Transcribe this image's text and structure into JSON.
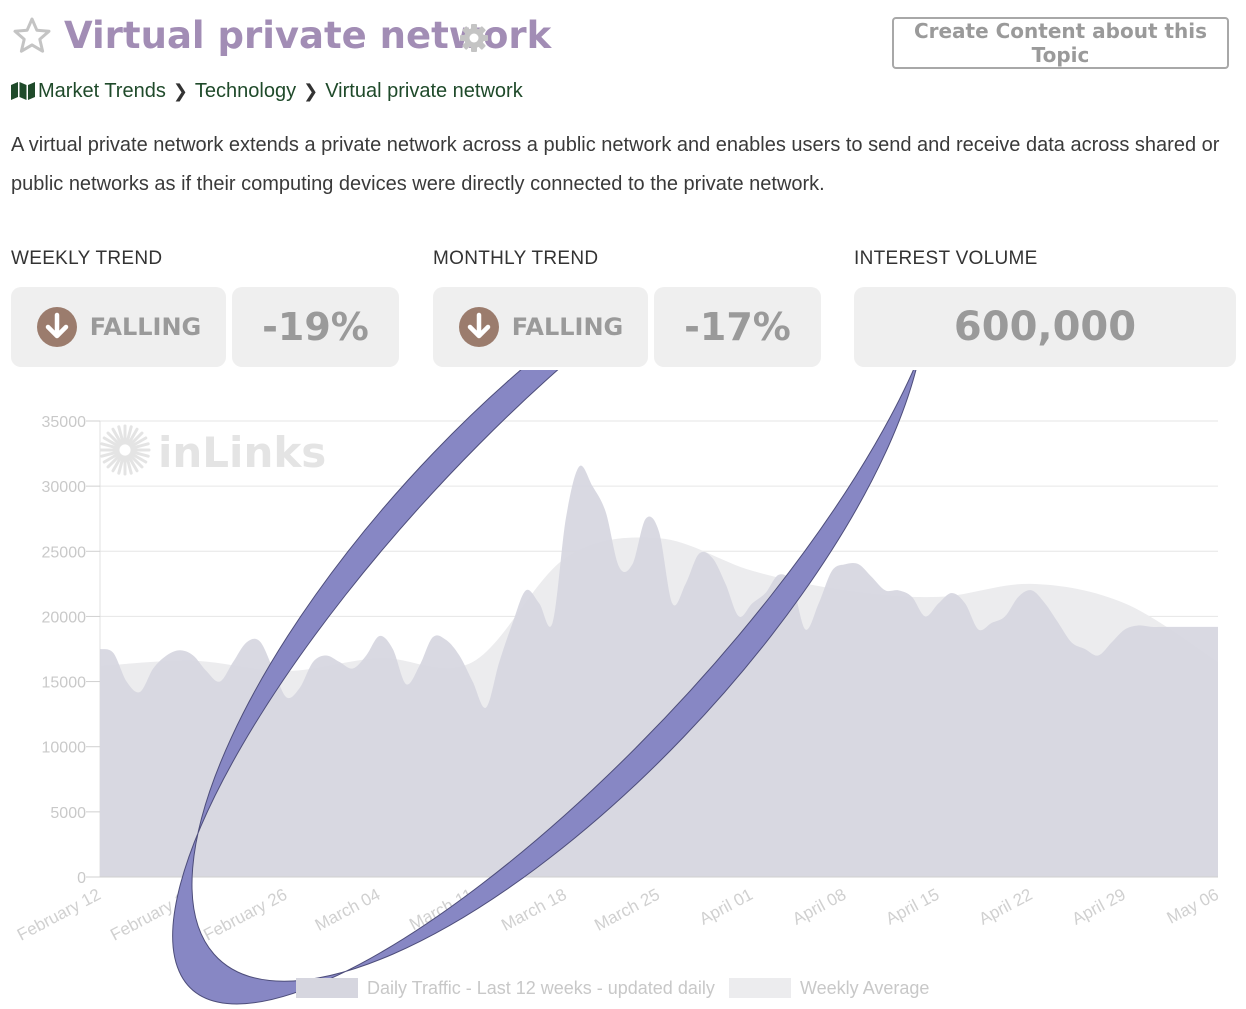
{
  "header": {
    "title": "Virtual private network",
    "create_button": "Create Content about this Topic"
  },
  "breadcrumb": [
    "Market Trends",
    "Technology",
    "Virtual private network"
  ],
  "description": "A virtual private network extends a private network across a public network and enables users to send and receive data across shared or public networks as if their computing devices were directly connected to the private network.",
  "stats": {
    "weekly": {
      "label": "WEEKLY TREND",
      "status": "FALLING",
      "change": "-19%"
    },
    "monthly": {
      "label": "MONTHLY TREND",
      "status": "FALLING",
      "change": "-17%"
    },
    "volume": {
      "label": "INTEREST VOLUME",
      "value": "600,000"
    }
  },
  "colors": {
    "title": "#a28db5",
    "daily_fill": "#d6d6df",
    "weekly_fill": "#ececee",
    "annotation_ring": "#8787c4",
    "falling_icon": "#9b7c6d"
  },
  "chart_data": {
    "type": "area",
    "watermark": "inLinks",
    "ylim": [
      0,
      35000
    ],
    "yticks": [
      0,
      5000,
      10000,
      15000,
      20000,
      25000,
      30000,
      35000
    ],
    "xlim": [
      "2024-02-12",
      "2024-05-06"
    ],
    "xticks": [
      "February 12",
      "February 19",
      "February 26",
      "March 04",
      "March 11",
      "March 18",
      "March 25",
      "April 01",
      "April 08",
      "April 15",
      "April 22",
      "April 29",
      "May 06"
    ],
    "grid": true,
    "legend_position": "bottom",
    "series": [
      {
        "name": "Daily Traffic - Last 12 weeks - updated daily",
        "x": [
          "2024-02-12",
          "2024-02-13",
          "2024-02-14",
          "2024-02-15",
          "2024-02-16",
          "2024-02-17",
          "2024-02-18",
          "2024-02-19",
          "2024-02-20",
          "2024-02-21",
          "2024-02-22",
          "2024-02-23",
          "2024-02-24",
          "2024-02-25",
          "2024-02-26",
          "2024-02-27",
          "2024-02-28",
          "2024-02-29",
          "2024-03-01",
          "2024-03-02",
          "2024-03-03",
          "2024-03-04",
          "2024-03-05",
          "2024-03-06",
          "2024-03-07",
          "2024-03-08",
          "2024-03-09",
          "2024-03-10",
          "2024-03-11",
          "2024-03-12",
          "2024-03-13",
          "2024-03-14",
          "2024-03-15",
          "2024-03-16",
          "2024-03-17",
          "2024-03-18",
          "2024-03-19",
          "2024-03-20",
          "2024-03-21",
          "2024-03-22",
          "2024-03-23",
          "2024-03-24",
          "2024-03-25",
          "2024-03-26",
          "2024-03-27",
          "2024-03-28",
          "2024-03-29",
          "2024-03-30",
          "2024-03-31",
          "2024-04-01",
          "2024-04-02",
          "2024-04-03",
          "2024-04-04",
          "2024-04-05",
          "2024-04-06",
          "2024-04-07",
          "2024-04-08",
          "2024-04-09",
          "2024-04-10",
          "2024-04-11",
          "2024-04-12",
          "2024-04-13",
          "2024-04-14",
          "2024-04-15",
          "2024-04-16",
          "2024-04-17",
          "2024-04-18",
          "2024-04-19",
          "2024-04-20",
          "2024-04-21",
          "2024-04-22",
          "2024-04-23",
          "2024-04-24",
          "2024-04-25",
          "2024-04-26",
          "2024-04-27",
          "2024-04-28",
          "2024-04-29",
          "2024-04-30",
          "2024-05-01",
          "2024-05-02",
          "2024-05-03",
          "2024-05-04",
          "2024-05-05",
          "2024-05-06"
        ],
        "values": [
          17500,
          17200,
          15000,
          14200,
          16000,
          17000,
          17400,
          17000,
          15800,
          15000,
          16500,
          18000,
          18100,
          16000,
          13800,
          14500,
          16500,
          17000,
          16500,
          16000,
          17000,
          18500,
          17500,
          14800,
          16200,
          18400,
          18200,
          17000,
          15000,
          13000,
          16500,
          19500,
          22000,
          21000,
          19500,
          27500,
          31500,
          30000,
          28000,
          23800,
          24000,
          27500,
          26500,
          21000,
          22500,
          24800,
          24500,
          22500,
          20000,
          21000,
          21800,
          23200,
          22500,
          19000,
          21000,
          23500,
          24000,
          24000,
          23000,
          22000,
          22000,
          21500,
          20000,
          21000,
          21800,
          21000,
          19000,
          19500,
          20000,
          21500,
          22000,
          21000,
          19500,
          18000,
          17500,
          17000,
          18000,
          19000,
          19300,
          19200,
          19200,
          19200,
          19200,
          19200,
          19200
        ]
      },
      {
        "name": "Weekly Average",
        "x": [
          "2024-02-12",
          "2024-02-19",
          "2024-02-26",
          "2024-03-04",
          "2024-03-11",
          "2024-03-18",
          "2024-03-25",
          "2024-04-01",
          "2024-04-08",
          "2024-04-15",
          "2024-04-22",
          "2024-04-29",
          "2024-05-06"
        ],
        "values": [
          16200,
          16600,
          15800,
          16800,
          16500,
          24500,
          26000,
          23500,
          22000,
          21500,
          22500,
          21000,
          16500
        ]
      }
    ]
  }
}
